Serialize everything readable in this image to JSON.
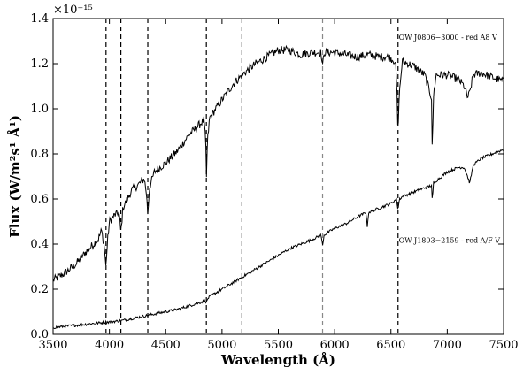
{
  "chart_data": {
    "type": "line",
    "xlabel": "Wavelength (Å)",
    "ylabel": "Flux (W/m²s¹ Å¹)",
    "y_scale_label": "×10⁻¹⁵",
    "xlim": [
      3500,
      7500
    ],
    "ylim": [
      0.0,
      1.4
    ],
    "x_ticks": [
      3500,
      4000,
      4500,
      5000,
      5500,
      6000,
      6500,
      7000,
      7500
    ],
    "y_ticks": [
      0.0,
      0.2,
      0.4,
      0.6,
      0.8,
      1.0,
      1.2,
      1.4
    ],
    "x_tick_labels": [
      "3500",
      "4000",
      "4500",
      "5000",
      "5500",
      "6000",
      "6500",
      "7000",
      "7500"
    ],
    "y_tick_labels": [
      "0.0",
      "0.2",
      "0.4",
      "0.6",
      "0.8",
      "1.0",
      "1.2",
      "1.4"
    ],
    "grid": false,
    "vertical_lines": [
      {
        "x": 3970,
        "color": "#000000"
      },
      {
        "x": 4102,
        "color": "#000000"
      },
      {
        "x": 4341,
        "color": "#000000"
      },
      {
        "x": 4861,
        "color": "#000000"
      },
      {
        "x": 5175,
        "color": "#888888"
      },
      {
        "x": 5893,
        "color": "#888888"
      },
      {
        "x": 6563,
        "color": "#000000"
      }
    ],
    "annotations": [
      {
        "text": "OW J0806−3000 - red A8 V",
        "x": 6570,
        "y": 1.305
      },
      {
        "text": "OW J1803−2159 - red A/F V",
        "x": 6570,
        "y": 0.405
      }
    ],
    "series": [
      {
        "color": "#000000",
        "x": [
          3500,
          3600,
          3700,
          3800,
          3900,
          3930,
          3955,
          3968,
          3985,
          4000,
          4050,
          4085,
          4102,
          4120,
          4200,
          4250,
          4310,
          4330,
          4341,
          4355,
          4400,
          4500,
          4600,
          4700,
          4800,
          4840,
          4855,
          4861,
          4870,
          4890,
          5000,
          5100,
          5200,
          5300,
          5400,
          5500,
          5600,
          5700,
          5800,
          5880,
          5893,
          5905,
          6000,
          6100,
          6200,
          6300,
          6400,
          6480,
          6540,
          6555,
          6563,
          6572,
          6600,
          6700,
          6800,
          6860,
          6868,
          6876,
          6900,
          7000,
          7100,
          7150,
          7180,
          7200,
          7230,
          7300,
          7400,
          7500
        ],
        "y": [
          0.24,
          0.27,
          0.31,
          0.37,
          0.42,
          0.46,
          0.39,
          0.3,
          0.42,
          0.5,
          0.53,
          0.54,
          0.45,
          0.56,
          0.64,
          0.66,
          0.69,
          0.62,
          0.53,
          0.65,
          0.72,
          0.76,
          0.81,
          0.88,
          0.93,
          0.95,
          0.85,
          0.68,
          0.85,
          0.96,
          1.04,
          1.11,
          1.16,
          1.2,
          1.23,
          1.26,
          1.26,
          1.24,
          1.25,
          1.25,
          1.18,
          1.25,
          1.25,
          1.24,
          1.23,
          1.24,
          1.23,
          1.23,
          1.21,
          1.05,
          0.86,
          1.05,
          1.21,
          1.19,
          1.15,
          1.05,
          0.78,
          1.05,
          1.15,
          1.15,
          1.13,
          1.1,
          1.05,
          1.07,
          1.15,
          1.16,
          1.14,
          1.12
        ]
      },
      {
        "color": "#000000",
        "x": [
          3500,
          3600,
          3700,
          3800,
          3900,
          4000,
          4100,
          4200,
          4300,
          4400,
          4500,
          4600,
          4700,
          4800,
          4850,
          4861,
          4875,
          4900,
          5000,
          5100,
          5200,
          5300,
          5400,
          5500,
          5600,
          5700,
          5800,
          5880,
          5893,
          5905,
          6000,
          6100,
          6200,
          6280,
          6290,
          6300,
          6400,
          6500,
          6550,
          6563,
          6575,
          6600,
          6700,
          6800,
          6860,
          6868,
          6876,
          6900,
          7000,
          7100,
          7150,
          7180,
          7200,
          7230,
          7300,
          7400,
          7500
        ],
        "y": [
          0.03,
          0.035,
          0.04,
          0.045,
          0.05,
          0.055,
          0.06,
          0.07,
          0.08,
          0.09,
          0.1,
          0.11,
          0.125,
          0.14,
          0.15,
          0.14,
          0.16,
          0.17,
          0.2,
          0.23,
          0.26,
          0.29,
          0.32,
          0.35,
          0.38,
          0.4,
          0.42,
          0.44,
          0.39,
          0.44,
          0.47,
          0.49,
          0.52,
          0.54,
          0.47,
          0.54,
          0.56,
          0.58,
          0.6,
          0.55,
          0.6,
          0.61,
          0.63,
          0.65,
          0.66,
          0.58,
          0.67,
          0.68,
          0.72,
          0.74,
          0.74,
          0.7,
          0.67,
          0.75,
          0.78,
          0.8,
          0.82
        ]
      }
    ]
  }
}
